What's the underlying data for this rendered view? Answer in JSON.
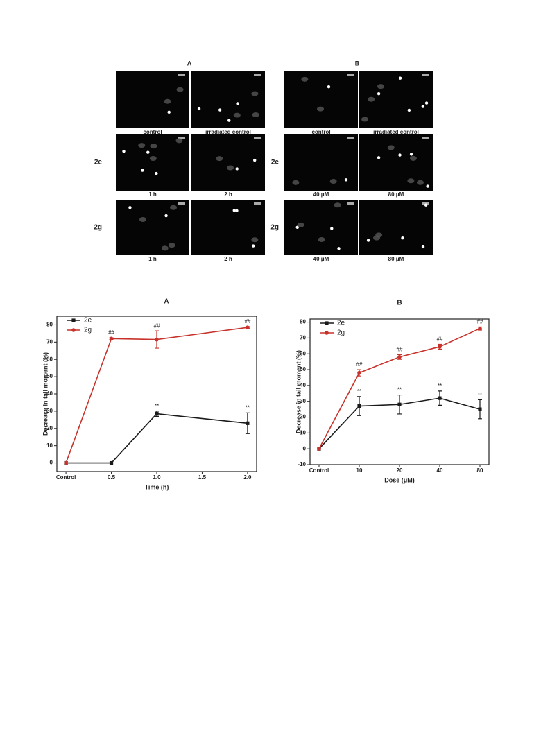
{
  "figure_top": {
    "panels": [
      {
        "label": "A",
        "rows": [
          {
            "captions": [
              "control",
              "irradiated control"
            ]
          },
          {
            "label": "2e",
            "captions": [
              "1 h",
              "2 h"
            ]
          },
          {
            "label": "2g",
            "captions": [
              "1 h",
              "2 h"
            ]
          }
        ]
      },
      {
        "label": "B",
        "rows": [
          {
            "captions": [
              "control",
              "irradiated control"
            ]
          },
          {
            "label": "2e",
            "captions": [
              "40 μM",
              "80 μM"
            ]
          },
          {
            "label": "2g",
            "captions": [
              "40  μM",
              "80 μM"
            ]
          }
        ]
      }
    ]
  },
  "chart_data": [
    {
      "type": "line",
      "title": "A",
      "x_label": "Time (h)",
      "y_label": "Decrease in tail moment (%)",
      "x": [
        0,
        0.5,
        1,
        2
      ],
      "xlim": [
        -0.1,
        2.1
      ],
      "xticks": [
        {
          "value": 0,
          "label": "Control"
        },
        0.5,
        {
          "value": 1,
          "label": "1.0"
        },
        1.5,
        {
          "value": 2,
          "label": "2.0"
        }
      ],
      "ylim": [
        -5,
        85
      ],
      "yticks": [
        0,
        10,
        20,
        30,
        40,
        50,
        60,
        70,
        80
      ],
      "legend": "upper left",
      "series": [
        {
          "name": "2e",
          "color": "#1a1a1a",
          "marker": "square",
          "values": [
            0,
            0,
            28.5,
            23
          ],
          "errors": [
            0,
            0,
            1.5,
            6
          ],
          "significance": [
            null,
            null,
            "**",
            "**"
          ]
        },
        {
          "name": "2g",
          "color": "#c8322a",
          "marker": "circle",
          "values": [
            0,
            72,
            71.5,
            78.5
          ],
          "errors": [
            0,
            0.5,
            5,
            0.5
          ],
          "significance": [
            null,
            "##",
            "##",
            "##"
          ]
        }
      ]
    },
    {
      "type": "line",
      "title": "B",
      "x_label": "Dose (μM)",
      "y_label": "Decrease in tail moment (%)",
      "categories": [
        "Control",
        "10",
        "20",
        "40",
        "80"
      ],
      "ylim": [
        -10,
        82
      ],
      "yticks": [
        -10,
        0,
        10,
        20,
        30,
        40,
        50,
        60,
        70,
        80
      ],
      "legend": "upper left",
      "series": [
        {
          "name": "2e",
          "color": "#1a1a1a",
          "marker": "square",
          "values": [
            0,
            27,
            28,
            32,
            25
          ],
          "errors": [
            0,
            6,
            6,
            4.5,
            6
          ],
          "significance": [
            null,
            "**",
            "**",
            "**",
            "**"
          ]
        },
        {
          "name": "2g",
          "color": "#c8322a",
          "marker": "circle",
          "values": [
            0,
            48,
            58,
            64.5,
            76
          ],
          "errors": [
            0,
            2,
            1.5,
            1.5,
            1
          ],
          "significance": [
            null,
            "##",
            "##",
            "##",
            "##"
          ]
        }
      ]
    }
  ]
}
